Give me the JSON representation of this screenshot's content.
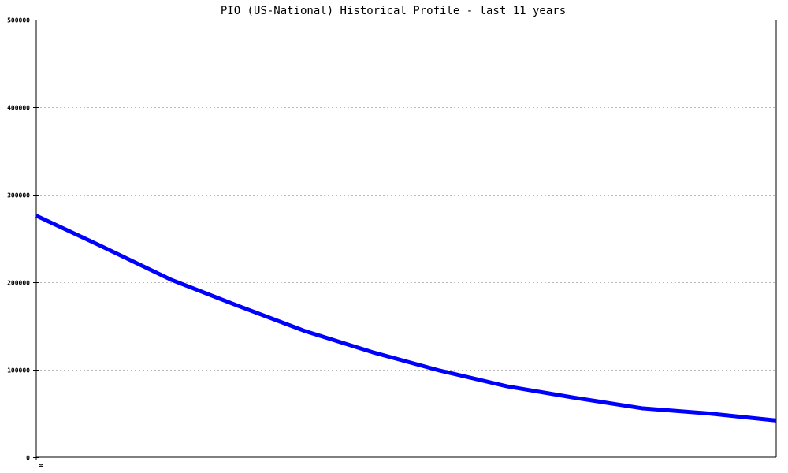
{
  "chart_data": {
    "type": "line",
    "title": "PIO (US-National) Historical Profile - last 11 years",
    "xlabel": "",
    "ylabel": "",
    "ylim": [
      0,
      500000
    ],
    "yticks": [
      0,
      100000,
      200000,
      300000,
      400000,
      500000
    ],
    "ytick_labels": [
      "0",
      "100000",
      "200000",
      "300000",
      "400000",
      "500000"
    ],
    "xtick_labels": [
      "0"
    ],
    "grid": true,
    "line_color": "#0000ff",
    "series": [
      {
        "values": [
          276000,
          240000,
          203000,
          173000,
          144000,
          120000,
          99000,
          81000,
          68000,
          56000,
          50000,
          42000
        ]
      }
    ]
  }
}
